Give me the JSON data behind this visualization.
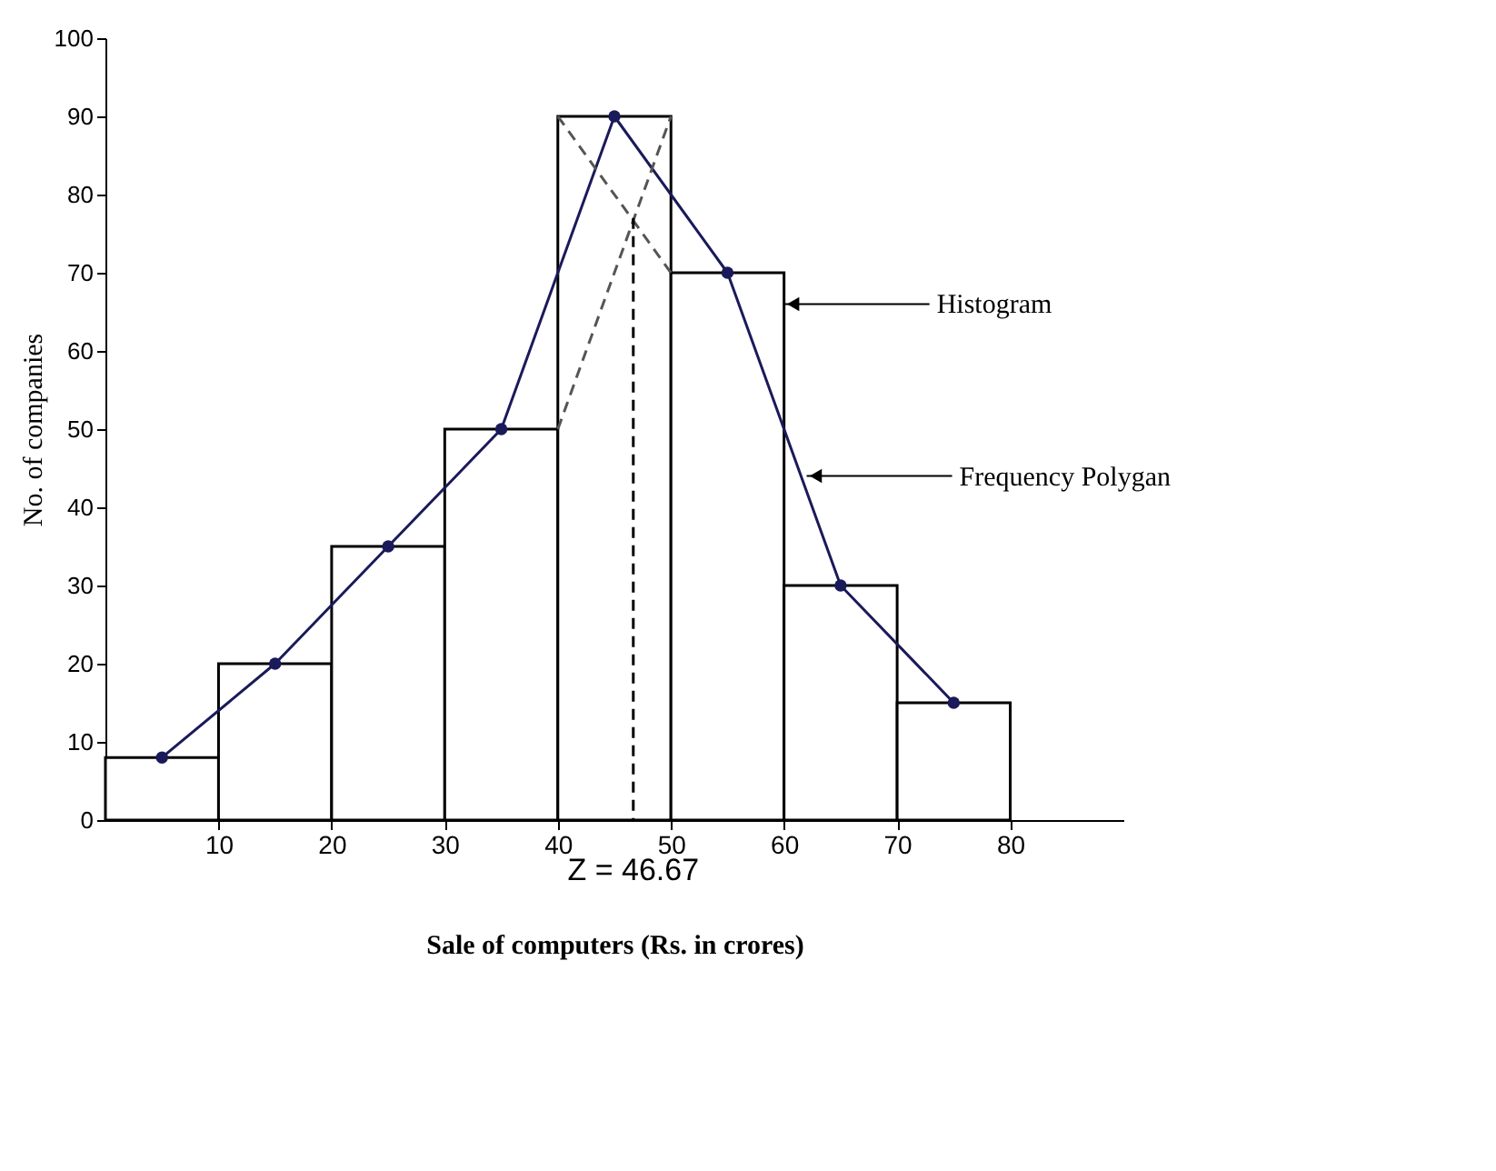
{
  "chart_data": {
    "type": "histogram",
    "xlabel": "Sale of computers (Rs. in crores)",
    "ylabel": "No. of companies",
    "bins": [
      0,
      10,
      20,
      30,
      40,
      50,
      60,
      70,
      80
    ],
    "values": [
      8,
      20,
      35,
      50,
      90,
      70,
      30,
      15
    ],
    "color": "#ffffff",
    "series": [
      {
        "type": "line",
        "x": [
          5,
          15,
          25,
          35,
          45,
          55,
          65,
          75
        ],
        "values": [
          8,
          20,
          35,
          50,
          90,
          70,
          30,
          15
        ],
        "color": "#1a1a5a",
        "marker": "circle",
        "line_style": "solid"
      },
      {
        "type": "line",
        "x": [
          40,
          50
        ],
        "values": [
          90,
          70
        ],
        "color": "#555555",
        "marker": "none",
        "line_style": "dashed"
      },
      {
        "type": "line",
        "x": [
          40,
          50
        ],
        "values": [
          50,
          90
        ],
        "color": "#555555",
        "marker": "none",
        "line_style": "dashed"
      },
      {
        "type": "line",
        "x": [
          46.67,
          46.67
        ],
        "values": [
          77,
          0
        ],
        "color": "#000000",
        "marker": "none",
        "line_style": "dashed"
      }
    ],
    "annotations": [
      {
        "text": "Histogram",
        "x": 60,
        "y": 66
      },
      {
        "text": "Frequency Polygan",
        "x": 62,
        "y": 44
      },
      {
        "text": "Z = 46.67",
        "x": 46.67,
        "y": 0
      }
    ],
    "xlim": [
      0,
      90
    ],
    "xticks": [
      10,
      20,
      30,
      40,
      50,
      60,
      70,
      80
    ],
    "ylim": [
      0,
      100
    ],
    "yticks": [
      0,
      10,
      20,
      30,
      40,
      50,
      60,
      70,
      80,
      90,
      100
    ],
    "grid": false
  }
}
